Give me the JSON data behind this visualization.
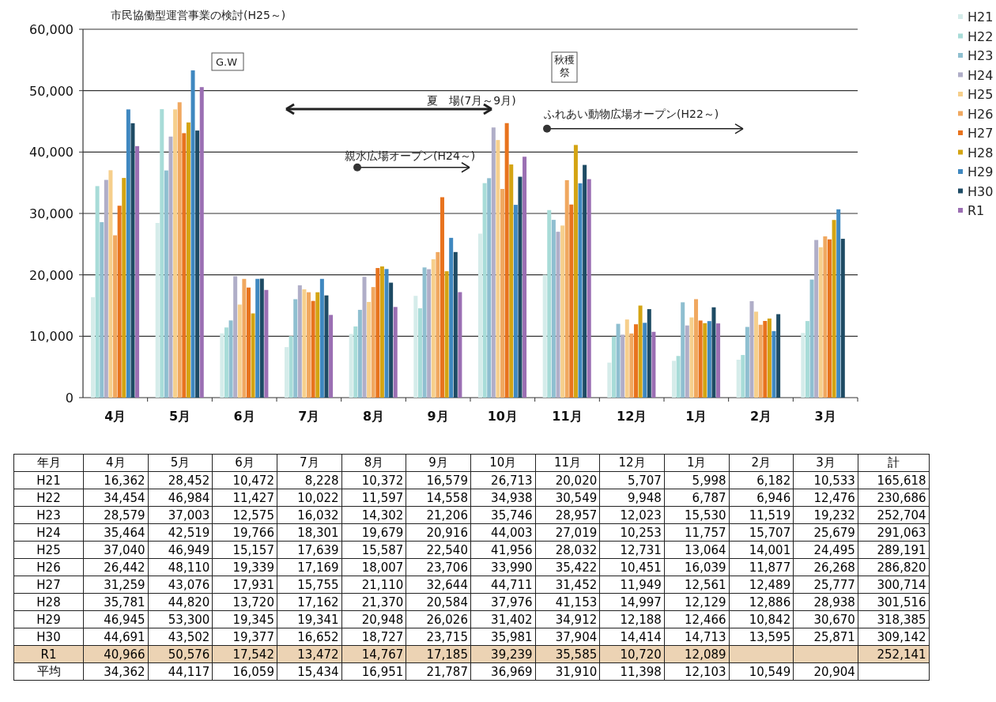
{
  "chart_data": {
    "type": "bar",
    "title": "市民協働型運営事業の検討(H25～)",
    "categories": [
      "4月",
      "5月",
      "6月",
      "7月",
      "8月",
      "9月",
      "10月",
      "11月",
      "12月",
      "1月",
      "2月",
      "3月"
    ],
    "series": [
      {
        "name": "H21",
        "color": "#d5ecea",
        "values": [
          16362,
          28452,
          10472,
          8228,
          10372,
          16579,
          26713,
          20020,
          5707,
          5998,
          6182,
          10533
        ],
        "value_labels": [
          "16,362",
          "28,452",
          "10,472",
          "8,228",
          "10,372",
          "16,579",
          "26,713",
          "20,020",
          "5,707",
          "5,998",
          "6,182",
          "10,533"
        ]
      },
      {
        "name": "H22",
        "color": "#a8dcd8",
        "values": [
          34454,
          46984,
          11427,
          10022,
          11597,
          14558,
          34938,
          30549,
          9948,
          6787,
          6946,
          12476
        ],
        "value_labels": [
          "34,454",
          "46,984",
          "11,427",
          "10,022",
          "11,597",
          "14,558",
          "34,938",
          "30,549",
          "9,948",
          "6,787",
          "6,946",
          "12,476"
        ]
      },
      {
        "name": "H23",
        "color": "#8fbfd0",
        "values": [
          28579,
          37003,
          12575,
          16032,
          14302,
          21206,
          35746,
          28957,
          12023,
          15530,
          11519,
          19232
        ],
        "value_labels": [
          "28,579",
          "37,003",
          "12,575",
          "16,032",
          "14,302",
          "21,206",
          "35,746",
          "28,957",
          "12,023",
          "15,530",
          "11,519",
          "19,232"
        ]
      },
      {
        "name": "H24",
        "color": "#b0aec8",
        "values": [
          35464,
          42519,
          19766,
          18301,
          19679,
          20916,
          44003,
          27019,
          10253,
          11757,
          15707,
          25679
        ],
        "value_labels": [
          "35,464",
          "42,519",
          "19,766",
          "18,301",
          "19,679",
          "20,916",
          "44,003",
          "27,019",
          "10,253",
          "11,757",
          "15,707",
          "25,679"
        ]
      },
      {
        "name": "H25",
        "color": "#f6cf8c",
        "values": [
          37040,
          46949,
          15157,
          17639,
          15587,
          22540,
          41956,
          28032,
          12731,
          13064,
          14001,
          24495
        ],
        "value_labels": [
          "37,040",
          "46,949",
          "15,157",
          "17,639",
          "15,587",
          "22,540",
          "41,956",
          "28,032",
          "12,731",
          "13,064",
          "14,001",
          "24,495"
        ]
      },
      {
        "name": "H26",
        "color": "#f0a860",
        "values": [
          26442,
          48110,
          19339,
          17169,
          18007,
          23706,
          33990,
          35422,
          10451,
          16039,
          11877,
          26268
        ],
        "value_labels": [
          "26,442",
          "48,110",
          "19,339",
          "17,169",
          "18,007",
          "23,706",
          "33,990",
          "35,422",
          "10,451",
          "16,039",
          "11,877",
          "26,268"
        ]
      },
      {
        "name": "H27",
        "color": "#e8731e",
        "values": [
          31259,
          43076,
          17931,
          15755,
          21110,
          32644,
          44711,
          31452,
          11949,
          12561,
          12489,
          25777
        ],
        "value_labels": [
          "31,259",
          "43,076",
          "17,931",
          "15,755",
          "21,110",
          "32,644",
          "44,711",
          "31,452",
          "11,949",
          "12,561",
          "12,489",
          "25,777"
        ]
      },
      {
        "name": "H28",
        "color": "#d4a413",
        "values": [
          35781,
          44820,
          13720,
          17162,
          21370,
          20584,
          37976,
          41153,
          14997,
          12129,
          12886,
          28938
        ],
        "value_labels": [
          "35,781",
          "44,820",
          "13,720",
          "17,162",
          "21,370",
          "20,584",
          "37,976",
          "41,153",
          "14,997",
          "12,129",
          "12,886",
          "28,938"
        ]
      },
      {
        "name": "H29",
        "color": "#3f88c0",
        "values": [
          46945,
          53300,
          19345,
          19341,
          20948,
          26026,
          31402,
          34912,
          12188,
          12466,
          10842,
          30670
        ],
        "value_labels": [
          "46,945",
          "53,300",
          "19,345",
          "19,341",
          "20,948",
          "26,026",
          "31,402",
          "34,912",
          "12,188",
          "12,466",
          "10,842",
          "30,670"
        ]
      },
      {
        "name": "H30",
        "color": "#1e4b64",
        "values": [
          44691,
          43502,
          19377,
          16652,
          18727,
          23715,
          35981,
          37904,
          14414,
          14713,
          13595,
          25871
        ],
        "value_labels": [
          "44,691",
          "43,502",
          "19,377",
          "16,652",
          "18,727",
          "23,715",
          "35,981",
          "37,904",
          "14,414",
          "14,713",
          "13,595",
          "25,871"
        ]
      },
      {
        "name": "R1",
        "color": "#9b6fb3",
        "values": [
          40966,
          50576,
          17542,
          13472,
          14767,
          17185,
          39239,
          35585,
          10720,
          12089,
          null,
          null
        ],
        "value_labels": [
          "40,966",
          "50,576",
          "17,542",
          "13,472",
          "14,767",
          "17,185",
          "39,239",
          "35,585",
          "10,720",
          "12,089",
          null,
          null
        ]
      }
    ],
    "ylim": [
      0,
      60000
    ],
    "yticks": [
      0,
      {
        "value": 10000,
        "label": "10,000"
      },
      {
        "value": 20000,
        "label": "20,000"
      },
      {
        "value": 30000,
        "label": "30,000"
      },
      {
        "value": 40000,
        "label": "40,000"
      },
      {
        "value": 50000,
        "label": "50,000"
      },
      {
        "value": 60000,
        "label": "60,000"
      }
    ],
    "grid": "y",
    "legend": "right",
    "data_labels": true,
    "annotations": [
      "G.W",
      "秋穫祭",
      "夏　場(7月～9月)",
      "親水広場オープン(H24～)",
      "ふれあい動物広場オープン(H22～)",
      "年月",
      "計",
      "165,618",
      "230,686",
      "252,704",
      "291,063",
      "289,191",
      "286,820",
      "300,714",
      "301,516",
      "318,385",
      "309,142",
      "252,141",
      "平均",
      "34,362",
      "44,117",
      "16,059",
      "15,434",
      "16,951",
      "21,787",
      "36,969",
      "31,910",
      "11,398",
      "12,103",
      "10,549",
      "20,904"
    ]
  }
}
